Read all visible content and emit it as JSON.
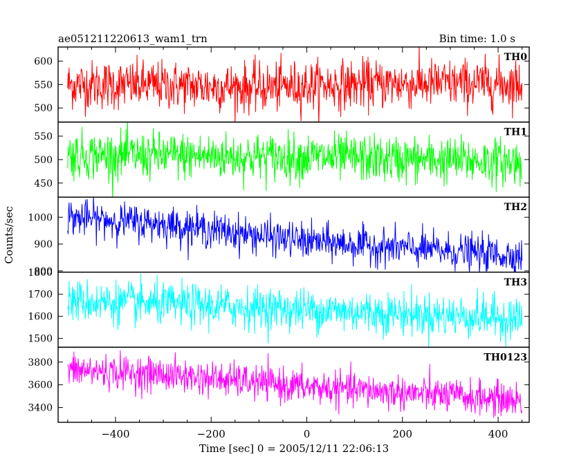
{
  "header": {
    "title": "ae051211220613_wam1_trn",
    "bin_time": "Bin time: 1.0 s"
  },
  "chart_data": {
    "type": "line",
    "xlabel": "Time [sec] 0 = 2005/12/11 22:06:13",
    "ylabel": "Counts/sec",
    "xlim": [
      -520,
      465
    ],
    "xticks": [
      -400,
      -200,
      0,
      200,
      400
    ],
    "x_range": [
      -500,
      450
    ],
    "bin_seconds": 1.0,
    "grid": false,
    "panels": [
      {
        "name": "TH0",
        "color": "#ff0000",
        "ylim": [
          470,
          630
        ],
        "yticks": [
          500,
          550,
          600
        ],
        "trend": {
          "x": [
            -500,
            -300,
            -100,
            0,
            200,
            450
          ],
          "y": [
            550,
            548,
            543,
            548,
            552,
            552
          ]
        },
        "noise_sd": 26
      },
      {
        "name": "TH1",
        "color": "#00ff00",
        "ylim": [
          420,
          580
        ],
        "yticks": [
          450,
          500,
          550
        ],
        "trend": {
          "x": [
            -500,
            0,
            450
          ],
          "y": [
            510,
            505,
            495
          ]
        },
        "noise_sd": 25
      },
      {
        "name": "TH2",
        "color": "#0000ff",
        "ylim": [
          795,
          1075
        ],
        "yticks": [
          800,
          900,
          1000
        ],
        "trend": {
          "x": [
            -500,
            -300,
            0,
            200,
            450
          ],
          "y": [
            1000,
            975,
            910,
            885,
            855
          ]
        },
        "noise_sd": 33
      },
      {
        "name": "TH3",
        "color": "#00ffff",
        "ylim": [
          1460,
          1800
        ],
        "yticks": [
          1500,
          1600,
          1700,
          1800
        ],
        "trend": {
          "x": [
            -500,
            0,
            450
          ],
          "y": [
            1670,
            1630,
            1590
          ]
        },
        "noise_sd": 48
      },
      {
        "name": "TH0123",
        "color": "#ff00ff",
        "ylim": [
          3270,
          3930
        ],
        "yticks": [
          3400,
          3600,
          3800
        ],
        "trend": {
          "x": [
            -500,
            -300,
            0,
            200,
            450
          ],
          "y": [
            3730,
            3690,
            3580,
            3530,
            3460
          ]
        },
        "noise_sd": 75
      }
    ]
  }
}
